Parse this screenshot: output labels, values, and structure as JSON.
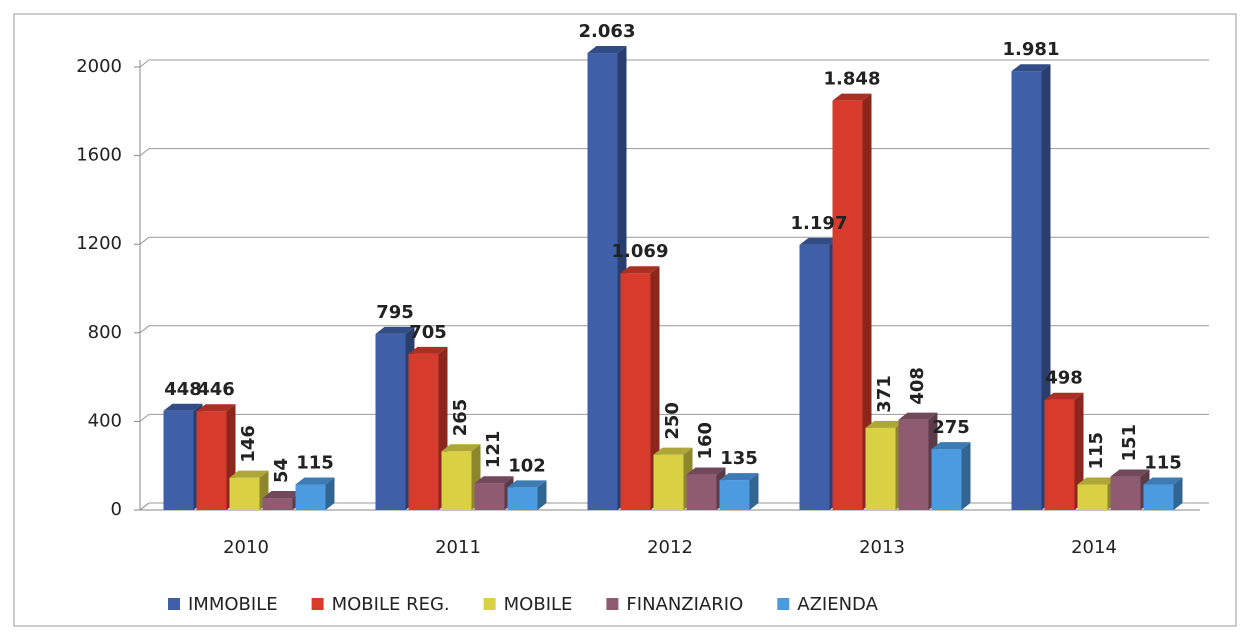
{
  "chart_data": {
    "type": "bar3d",
    "categories": [
      "2010",
      "2011",
      "2012",
      "2013",
      "2014"
    ],
    "series": [
      {
        "name": "IMMOBILE",
        "color": "#3f5fa8",
        "values": [
          448,
          795,
          2063,
          1197,
          1981
        ],
        "value_labels": [
          "448",
          "795",
          "2.063",
          "1.197",
          "1.981"
        ]
      },
      {
        "name": "MOBILE REG.",
        "color": "#d63b2b",
        "values": [
          446,
          705,
          1069,
          1848,
          498
        ],
        "value_labels": [
          "446",
          "705",
          "1.069",
          "1.848",
          "498"
        ]
      },
      {
        "name": "MOBILE",
        "color": "#d9d043",
        "values": [
          146,
          265,
          250,
          371,
          115
        ]
      },
      {
        "name": "FINANZIARIO",
        "color": "#8e5b70",
        "values": [
          54,
          121,
          160,
          408,
          151
        ]
      },
      {
        "name": "AZIENDA",
        "color": "#4c9be0",
        "values": [
          115,
          102,
          135,
          275,
          115
        ]
      }
    ],
    "ylim": [
      0,
      2000
    ],
    "yticks": [
      0,
      400,
      800,
      1200,
      1600,
      2000
    ],
    "grid": true,
    "legend": "bottom"
  }
}
